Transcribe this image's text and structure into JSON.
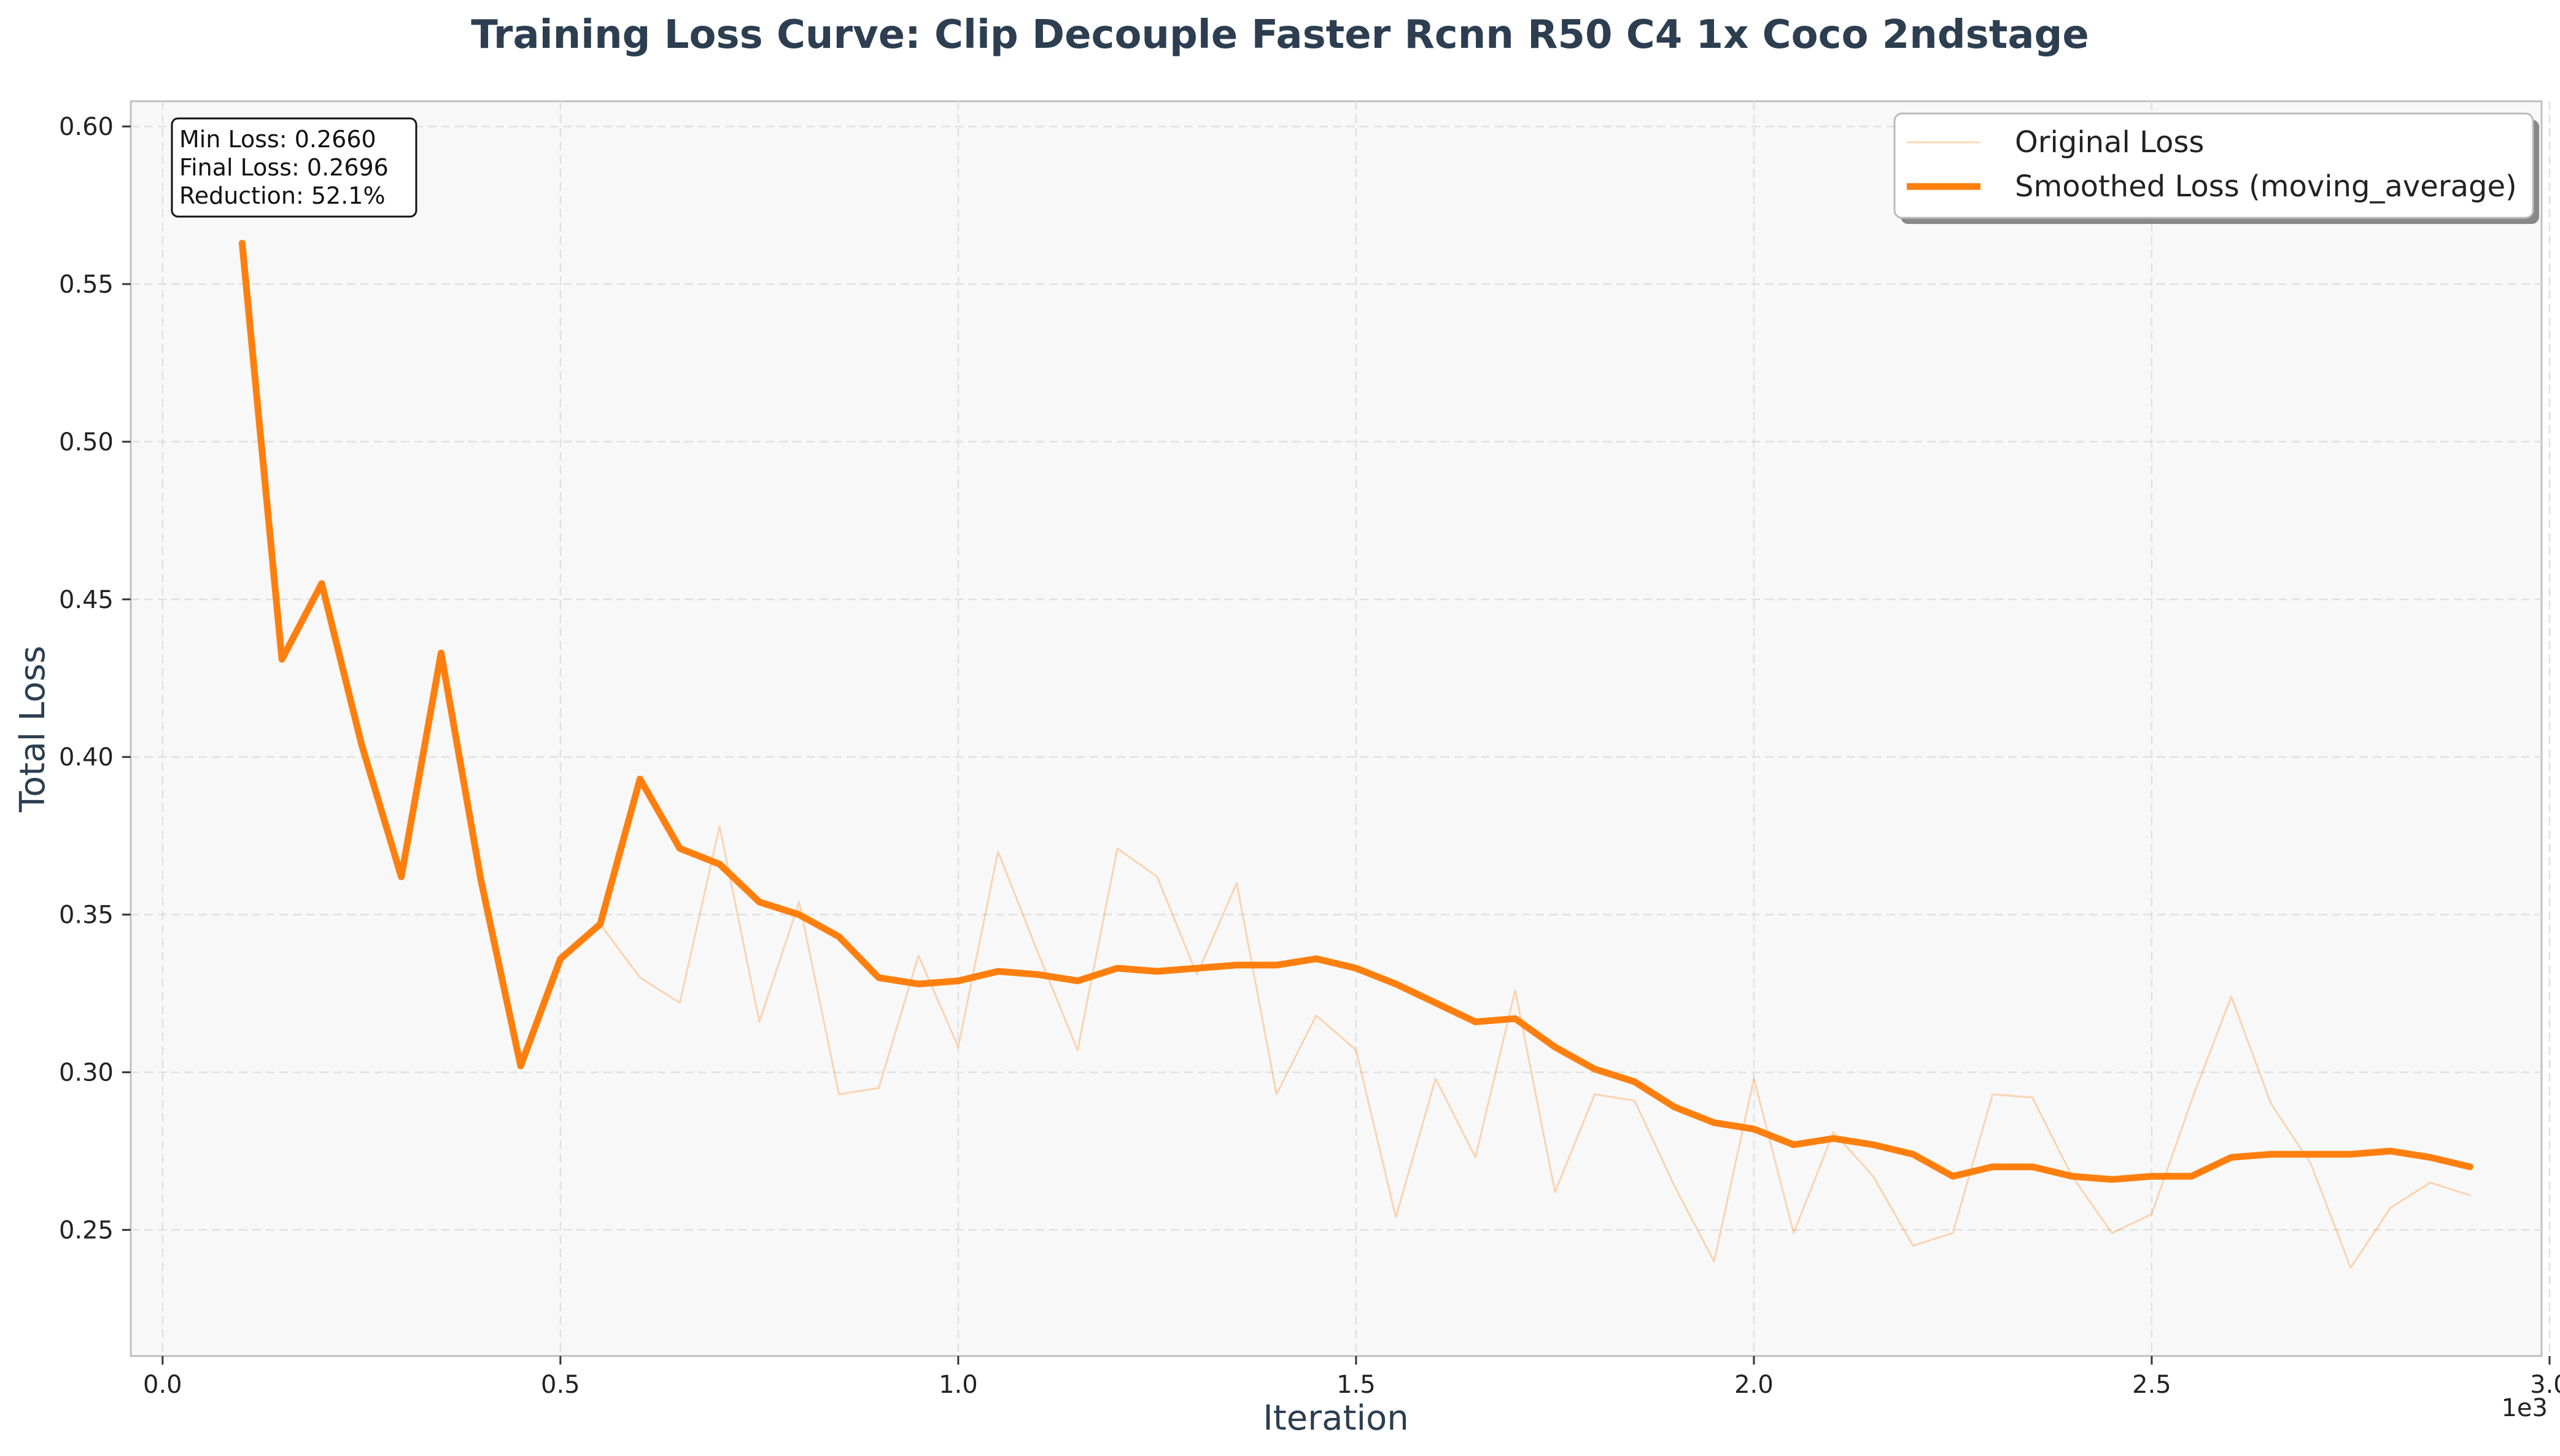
{
  "chart_data": {
    "type": "line",
    "title": "Training Loss Curve: Clip Decouple Faster Rcnn R50 C4 1x Coco 2ndstage",
    "xlabel": "Iteration",
    "ylabel": "Total Loss",
    "x_offset_label": "1e3",
    "xlim": [
      -40,
      2990
    ],
    "ylim": [
      0.21,
      0.608
    ],
    "xticks": [
      0,
      500,
      1000,
      1500,
      2000,
      2500,
      3000
    ],
    "xtick_labels": [
      "0.0",
      "0.5",
      "1.0",
      "1.5",
      "2.0",
      "2.5",
      "3.0"
    ],
    "yticks": [
      0.25,
      0.3,
      0.35,
      0.4,
      0.45,
      0.5,
      0.55,
      0.6
    ],
    "ytick_labels": [
      "0.25",
      "0.30",
      "0.35",
      "0.40",
      "0.45",
      "0.50",
      "0.55",
      "0.60"
    ],
    "grid": true,
    "legend_position": "top-right",
    "stats_box": {
      "lines": [
        "Min Loss: 0.2660",
        "Final Loss: 0.2696",
        "Reduction: 52.1%"
      ]
    },
    "x": [
      100,
      150,
      200,
      250,
      300,
      350,
      400,
      450,
      500,
      550,
      600,
      650,
      700,
      750,
      800,
      850,
      900,
      950,
      1000,
      1050,
      1100,
      1150,
      1200,
      1250,
      1300,
      1350,
      1400,
      1450,
      1500,
      1550,
      1600,
      1650,
      1700,
      1750,
      1800,
      1850,
      1900,
      1950,
      2000,
      2050,
      2100,
      2150,
      2200,
      2250,
      2300,
      2350,
      2400,
      2450,
      2500,
      2550,
      2600,
      2650,
      2700,
      2750,
      2800,
      2850,
      2900
    ],
    "series": [
      {
        "name": "Original Loss",
        "color": "#ff7f0e",
        "opacity": 0.3,
        "values": [
          0.563,
          0.431,
          0.455,
          0.404,
          0.362,
          0.433,
          0.361,
          0.302,
          0.336,
          0.347,
          0.33,
          0.322,
          0.378,
          0.316,
          0.354,
          0.293,
          0.295,
          0.337,
          0.308,
          0.37,
          0.338,
          0.307,
          0.371,
          0.362,
          0.331,
          0.36,
          0.293,
          0.318,
          0.307,
          0.254,
          0.298,
          0.273,
          0.326,
          0.262,
          0.293,
          0.291,
          0.264,
          0.24,
          0.298,
          0.249,
          0.281,
          0.267,
          0.245,
          0.249,
          0.293,
          0.292,
          0.267,
          0.249,
          0.255,
          0.291,
          0.324,
          0.29,
          0.271,
          0.238,
          0.257,
          0.265,
          0.261
        ]
      },
      {
        "name": "Smoothed Loss (moving_average)",
        "color": "#ff7f0e",
        "opacity": 1.0,
        "values": [
          0.563,
          0.431,
          0.455,
          0.404,
          0.362,
          0.433,
          0.361,
          0.302,
          0.336,
          0.347,
          0.393,
          0.371,
          0.366,
          0.354,
          0.35,
          0.343,
          0.33,
          0.328,
          0.329,
          0.332,
          0.331,
          0.329,
          0.333,
          0.332,
          0.333,
          0.334,
          0.334,
          0.336,
          0.333,
          0.328,
          0.322,
          0.316,
          0.317,
          0.308,
          0.301,
          0.297,
          0.289,
          0.284,
          0.282,
          0.277,
          0.279,
          0.277,
          0.274,
          0.267,
          0.27,
          0.27,
          0.267,
          0.266,
          0.267,
          0.267,
          0.273,
          0.274,
          0.274,
          0.274,
          0.275,
          0.273,
          0.27
        ]
      }
    ]
  }
}
